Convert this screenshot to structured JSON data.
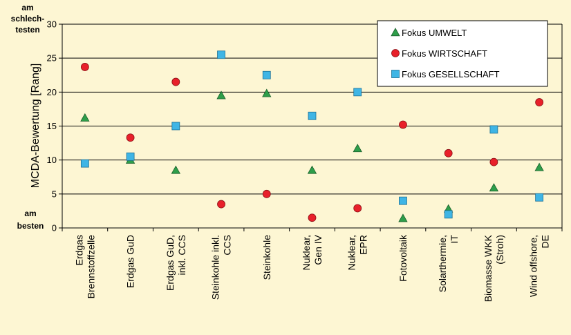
{
  "chart_data": {
    "type": "scatter",
    "ylabel": "MCDA-Bewertung [Rang]",
    "ylim": [
      0,
      30
    ],
    "yticks": [
      0,
      5,
      10,
      15,
      20,
      25,
      30
    ],
    "grid": true,
    "legend_position": "top-right",
    "annotations": {
      "top": [
        "am",
        "schlech-",
        "testen"
      ],
      "bottom": [
        "am",
        "besten"
      ]
    },
    "categories": [
      [
        "Erdgas",
        "Brennstoffzelle"
      ],
      [
        "Erdgas GuD"
      ],
      [
        "Erdgas GuD,",
        "inkl. CCS"
      ],
      [
        "Steinkohle inkl.",
        "CCS"
      ],
      [
        "Steinkohle"
      ],
      [
        "Nuklear,",
        "Gen IV"
      ],
      [
        "Nuklear,",
        "EPR"
      ],
      [
        "Fotovoltaik"
      ],
      [
        "Solarthermie,",
        "IT"
      ],
      [
        "Biomasse WKK",
        "(Stroh)"
      ],
      [
        "Wind offshore,",
        "DE"
      ]
    ],
    "series": [
      {
        "name": "Fokus UMWELT",
        "marker": "triangle",
        "color": "#2e9e4a",
        "values": [
          16.2,
          10.0,
          8.5,
          19.5,
          19.8,
          8.5,
          11.7,
          1.4,
          2.8,
          5.9,
          8.9
        ]
      },
      {
        "name": "Fokus WIRTSCHAFT",
        "marker": "circle",
        "color": "#e8202a",
        "values": [
          23.7,
          13.3,
          21.5,
          3.5,
          5.0,
          1.5,
          2.9,
          15.2,
          11.0,
          9.7,
          18.5
        ]
      },
      {
        "name": "Fokus GESELLSCHAFT",
        "marker": "square",
        "color": "#3fb5e5",
        "values": [
          9.5,
          10.5,
          15.0,
          25.5,
          22.5,
          16.5,
          20.0,
          4.0,
          2.0,
          14.5,
          4.5
        ]
      }
    ]
  }
}
